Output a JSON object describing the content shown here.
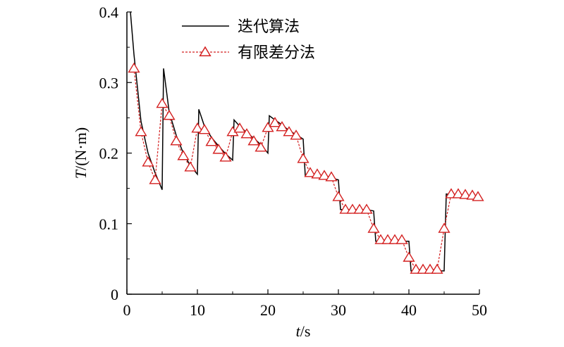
{
  "chart_data": {
    "type": "line",
    "title": "",
    "xlabel": "t/s",
    "ylabel": "T/(N·m)",
    "xlim": [
      0,
      50
    ],
    "ylim": [
      0,
      0.4
    ],
    "x_ticks": [
      "0",
      "10",
      "20",
      "30",
      "40",
      "50"
    ],
    "y_ticks": [
      "0",
      "0.1",
      "0.2",
      "0.3",
      "0.4"
    ],
    "grid": false,
    "legend_position": "top-center",
    "series": [
      {
        "name": "迭代算法",
        "style": "solid",
        "color": "#000000",
        "x": [
          0.5,
          1,
          2,
          3,
          4,
          5,
          5,
          5.2,
          6,
          7,
          8,
          9,
          10,
          10,
          10.2,
          11,
          12,
          13,
          14,
          15,
          15,
          15.2,
          16,
          17,
          18,
          19,
          20,
          20,
          20.2,
          21,
          22,
          23,
          24,
          25,
          25,
          25.3,
          26,
          27,
          28,
          29,
          30,
          30,
          30.3,
          31,
          32,
          33,
          34,
          35,
          35,
          35.3,
          36,
          37,
          38,
          39,
          40,
          40,
          40.3,
          41,
          42,
          43,
          44,
          45,
          45,
          45.3,
          46,
          47,
          48,
          49,
          49.8
        ],
        "y": [
          0.4,
          0.34,
          0.245,
          0.2,
          0.172,
          0.148,
          0.148,
          0.32,
          0.258,
          0.225,
          0.2,
          0.182,
          0.17,
          0.17,
          0.262,
          0.238,
          0.222,
          0.21,
          0.199,
          0.19,
          0.19,
          0.247,
          0.238,
          0.229,
          0.221,
          0.212,
          0.2,
          0.2,
          0.253,
          0.247,
          0.24,
          0.232,
          0.226,
          0.22,
          0.22,
          0.168,
          0.168,
          0.167,
          0.166,
          0.165,
          0.162,
          0.162,
          0.12,
          0.12,
          0.12,
          0.12,
          0.12,
          0.118,
          0.118,
          0.075,
          0.075,
          0.075,
          0.075,
          0.075,
          0.075,
          0.075,
          0.033,
          0.033,
          0.033,
          0.033,
          0.033,
          0.033,
          0.033,
          0.142,
          0.141,
          0.14,
          0.139,
          0.138,
          0.137
        ]
      },
      {
        "name": "有限差分法",
        "style": "dashed",
        "color": "#d42020",
        "marker": "triangle",
        "x": [
          1,
          2,
          3,
          4,
          5,
          6,
          7,
          8,
          9,
          10,
          11,
          12,
          13,
          14,
          15,
          16,
          17,
          18,
          19,
          20,
          21,
          22,
          23,
          24,
          25,
          26,
          27,
          28,
          29,
          30,
          31,
          32,
          33,
          34,
          35,
          36,
          37,
          38,
          39,
          40,
          41,
          42,
          43,
          44,
          45,
          46,
          47,
          48,
          49,
          49.8
        ],
        "y": [
          0.32,
          0.23,
          0.187,
          0.162,
          0.27,
          0.253,
          0.217,
          0.196,
          0.18,
          0.235,
          0.233,
          0.216,
          0.205,
          0.194,
          0.23,
          0.235,
          0.227,
          0.217,
          0.208,
          0.236,
          0.243,
          0.237,
          0.23,
          0.225,
          0.192,
          0.172,
          0.17,
          0.168,
          0.166,
          0.138,
          0.12,
          0.12,
          0.12,
          0.12,
          0.093,
          0.077,
          0.077,
          0.077,
          0.077,
          0.052,
          0.035,
          0.035,
          0.035,
          0.035,
          0.093,
          0.142,
          0.142,
          0.141,
          0.14,
          0.138
        ]
      }
    ]
  }
}
